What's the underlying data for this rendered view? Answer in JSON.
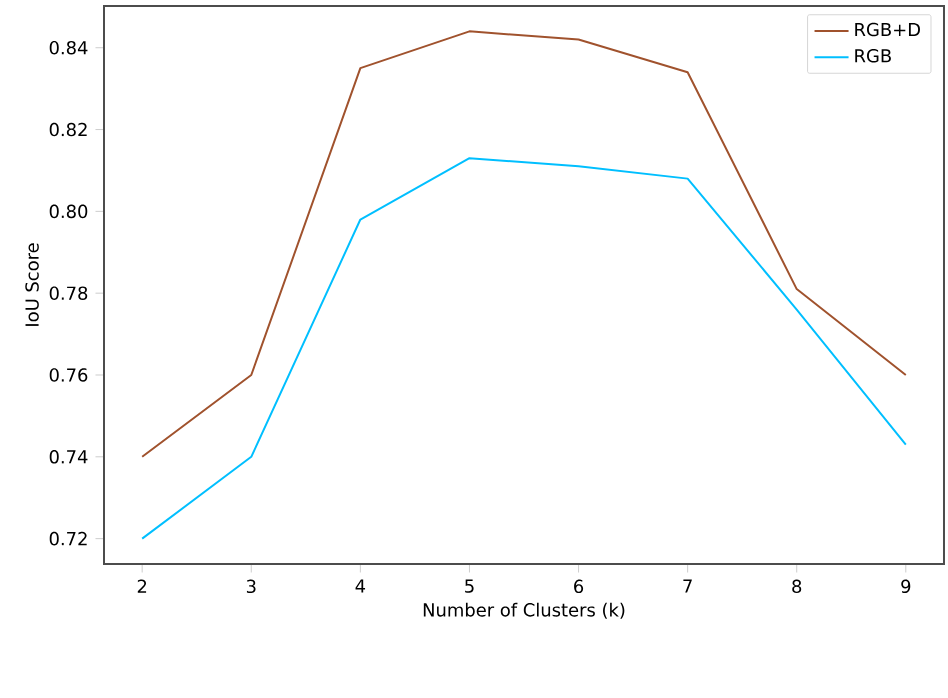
{
  "chart_data": {
    "type": "line",
    "xlabel": "Number of Clusters (k)",
    "ylabel": "IoU Score",
    "x": [
      2,
      3,
      4,
      5,
      6,
      7,
      8,
      9
    ],
    "series": [
      {
        "name": "RGB+D",
        "color": "#a0522d",
        "values": [
          0.74,
          0.76,
          0.835,
          0.844,
          0.842,
          0.834,
          0.781,
          0.76
        ]
      },
      {
        "name": "RGB",
        "color": "#00bfff",
        "values": [
          0.72,
          0.74,
          0.798,
          0.813,
          0.811,
          0.808,
          0.776,
          0.743
        ]
      }
    ],
    "xlim": [
      1.65,
      9.35
    ],
    "ylim": [
      0.7138,
      0.8502
    ],
    "xticks": [
      2,
      3,
      4,
      5,
      6,
      7,
      8,
      9
    ],
    "yticks": [
      {
        "value": 0.72,
        "label": "0.72"
      },
      {
        "value": 0.74,
        "label": "0.74"
      },
      {
        "value": 0.76,
        "label": "0.76"
      },
      {
        "value": 0.78,
        "label": "0.78"
      },
      {
        "value": 0.8,
        "label": "0.80"
      },
      {
        "value": 0.82,
        "label": "0.82"
      },
      {
        "value": 0.84,
        "label": "0.84"
      }
    ],
    "legend": "top right",
    "grid": false,
    "marker": "none",
    "line_style": "solid"
  }
}
